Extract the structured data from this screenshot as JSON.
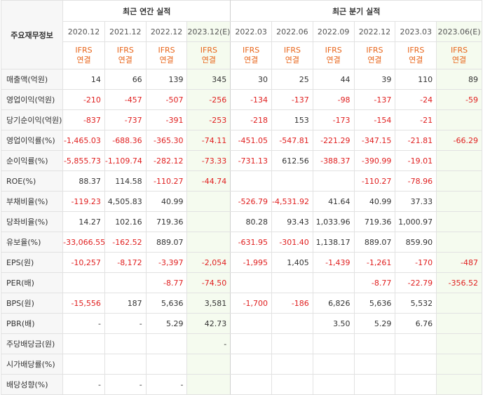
{
  "header": {
    "item_label": "주요재무정보",
    "annual_title": "최근 연간 실적",
    "quarter_title": "최근 분기 실적",
    "periods": [
      "2020.12",
      "2021.12",
      "2022.12",
      "2023.12(E)",
      "2022.03",
      "2022.06",
      "2022.09",
      "2022.12",
      "2023.03",
      "2023.06(E)"
    ],
    "ifrs_top": "IFRS",
    "ifrs_bottom": "연결"
  },
  "rows": [
    {
      "label": "매출액(억원)",
      "values": [
        "14",
        "66",
        "139",
        "345",
        "30",
        "25",
        "44",
        "39",
        "110",
        "89"
      ]
    },
    {
      "label": "영업이익(억원)",
      "values": [
        "-210",
        "-457",
        "-507",
        "-256",
        "-134",
        "-137",
        "-98",
        "-137",
        "-24",
        "-59"
      ]
    },
    {
      "label": "당기순이익(억원)",
      "values": [
        "-837",
        "-737",
        "-391",
        "-253",
        "-218",
        "153",
        "-173",
        "-154",
        "-21",
        ""
      ]
    },
    {
      "label": "영업이익률(%)",
      "values": [
        "-1,465.03",
        "-688.36",
        "-365.30",
        "-74.11",
        "-451.05",
        "-547.81",
        "-221.29",
        "-347.15",
        "-21.81",
        "-66.29"
      ]
    },
    {
      "label": "순이익률(%)",
      "values": [
        "-5,855.73",
        "-1,109.74",
        "-282.12",
        "-73.33",
        "-731.13",
        "612.56",
        "-388.37",
        "-390.99",
        "-19.01",
        ""
      ]
    },
    {
      "label": "ROE(%)",
      "values": [
        "88.37",
        "114.58",
        "-110.27",
        "-44.74",
        "",
        "",
        "",
        "-110.27",
        "-78.96",
        ""
      ]
    },
    {
      "label": "부채비율(%)",
      "values": [
        "-119.23",
        "4,505.83",
        "40.99",
        "",
        "-526.79",
        "-4,531.92",
        "41.64",
        "40.99",
        "37.33",
        ""
      ]
    },
    {
      "label": "당좌비율(%)",
      "values": [
        "14.27",
        "102.16",
        "719.36",
        "",
        "80.28",
        "93.43",
        "1,033.96",
        "719.36",
        "1,000.97",
        ""
      ]
    },
    {
      "label": "유보율(%)",
      "values": [
        "-33,066.55",
        "-162.52",
        "889.07",
        "",
        "-631.95",
        "-301.40",
        "1,138.17",
        "889.07",
        "859.90",
        ""
      ]
    },
    {
      "label": "EPS(원)",
      "values": [
        "-10,257",
        "-8,172",
        "-3,397",
        "-2,054",
        "-1,995",
        "1,405",
        "-1,439",
        "-1,261",
        "-170",
        "-487"
      ]
    },
    {
      "label": "PER(배)",
      "values": [
        "",
        "",
        "-8.77",
        "-74.50",
        "",
        "",
        "",
        "-8.77",
        "-22.79",
        "-356.52"
      ]
    },
    {
      "label": "BPS(원)",
      "values": [
        "-15,556",
        "187",
        "5,636",
        "3,581",
        "-1,700",
        "-186",
        "6,826",
        "5,636",
        "5,532",
        ""
      ]
    },
    {
      "label": "PBR(배)",
      "values": [
        "-",
        "-",
        "5.29",
        "42.73",
        "",
        "",
        "3.50",
        "5.29",
        "6.76",
        ""
      ]
    },
    {
      "label": "주당배당금(원)",
      "values": [
        "",
        "",
        "",
        "-",
        "",
        "",
        "",
        "",
        "",
        ""
      ]
    },
    {
      "label": "시가배당률(%)",
      "values": [
        "",
        "",
        "",
        "",
        "",
        "",
        "",
        "",
        "",
        ""
      ]
    },
    {
      "label": "배당성향(%)",
      "values": [
        "-",
        "-",
        "-",
        "",
        "",
        "",
        "",
        "",
        "",
        ""
      ]
    }
  ],
  "colors": {
    "negative": "#e02020",
    "ifrs": "#e8651a",
    "estimate_bg": "#f5fbef",
    "label_bg": "#f7f7f7"
  }
}
